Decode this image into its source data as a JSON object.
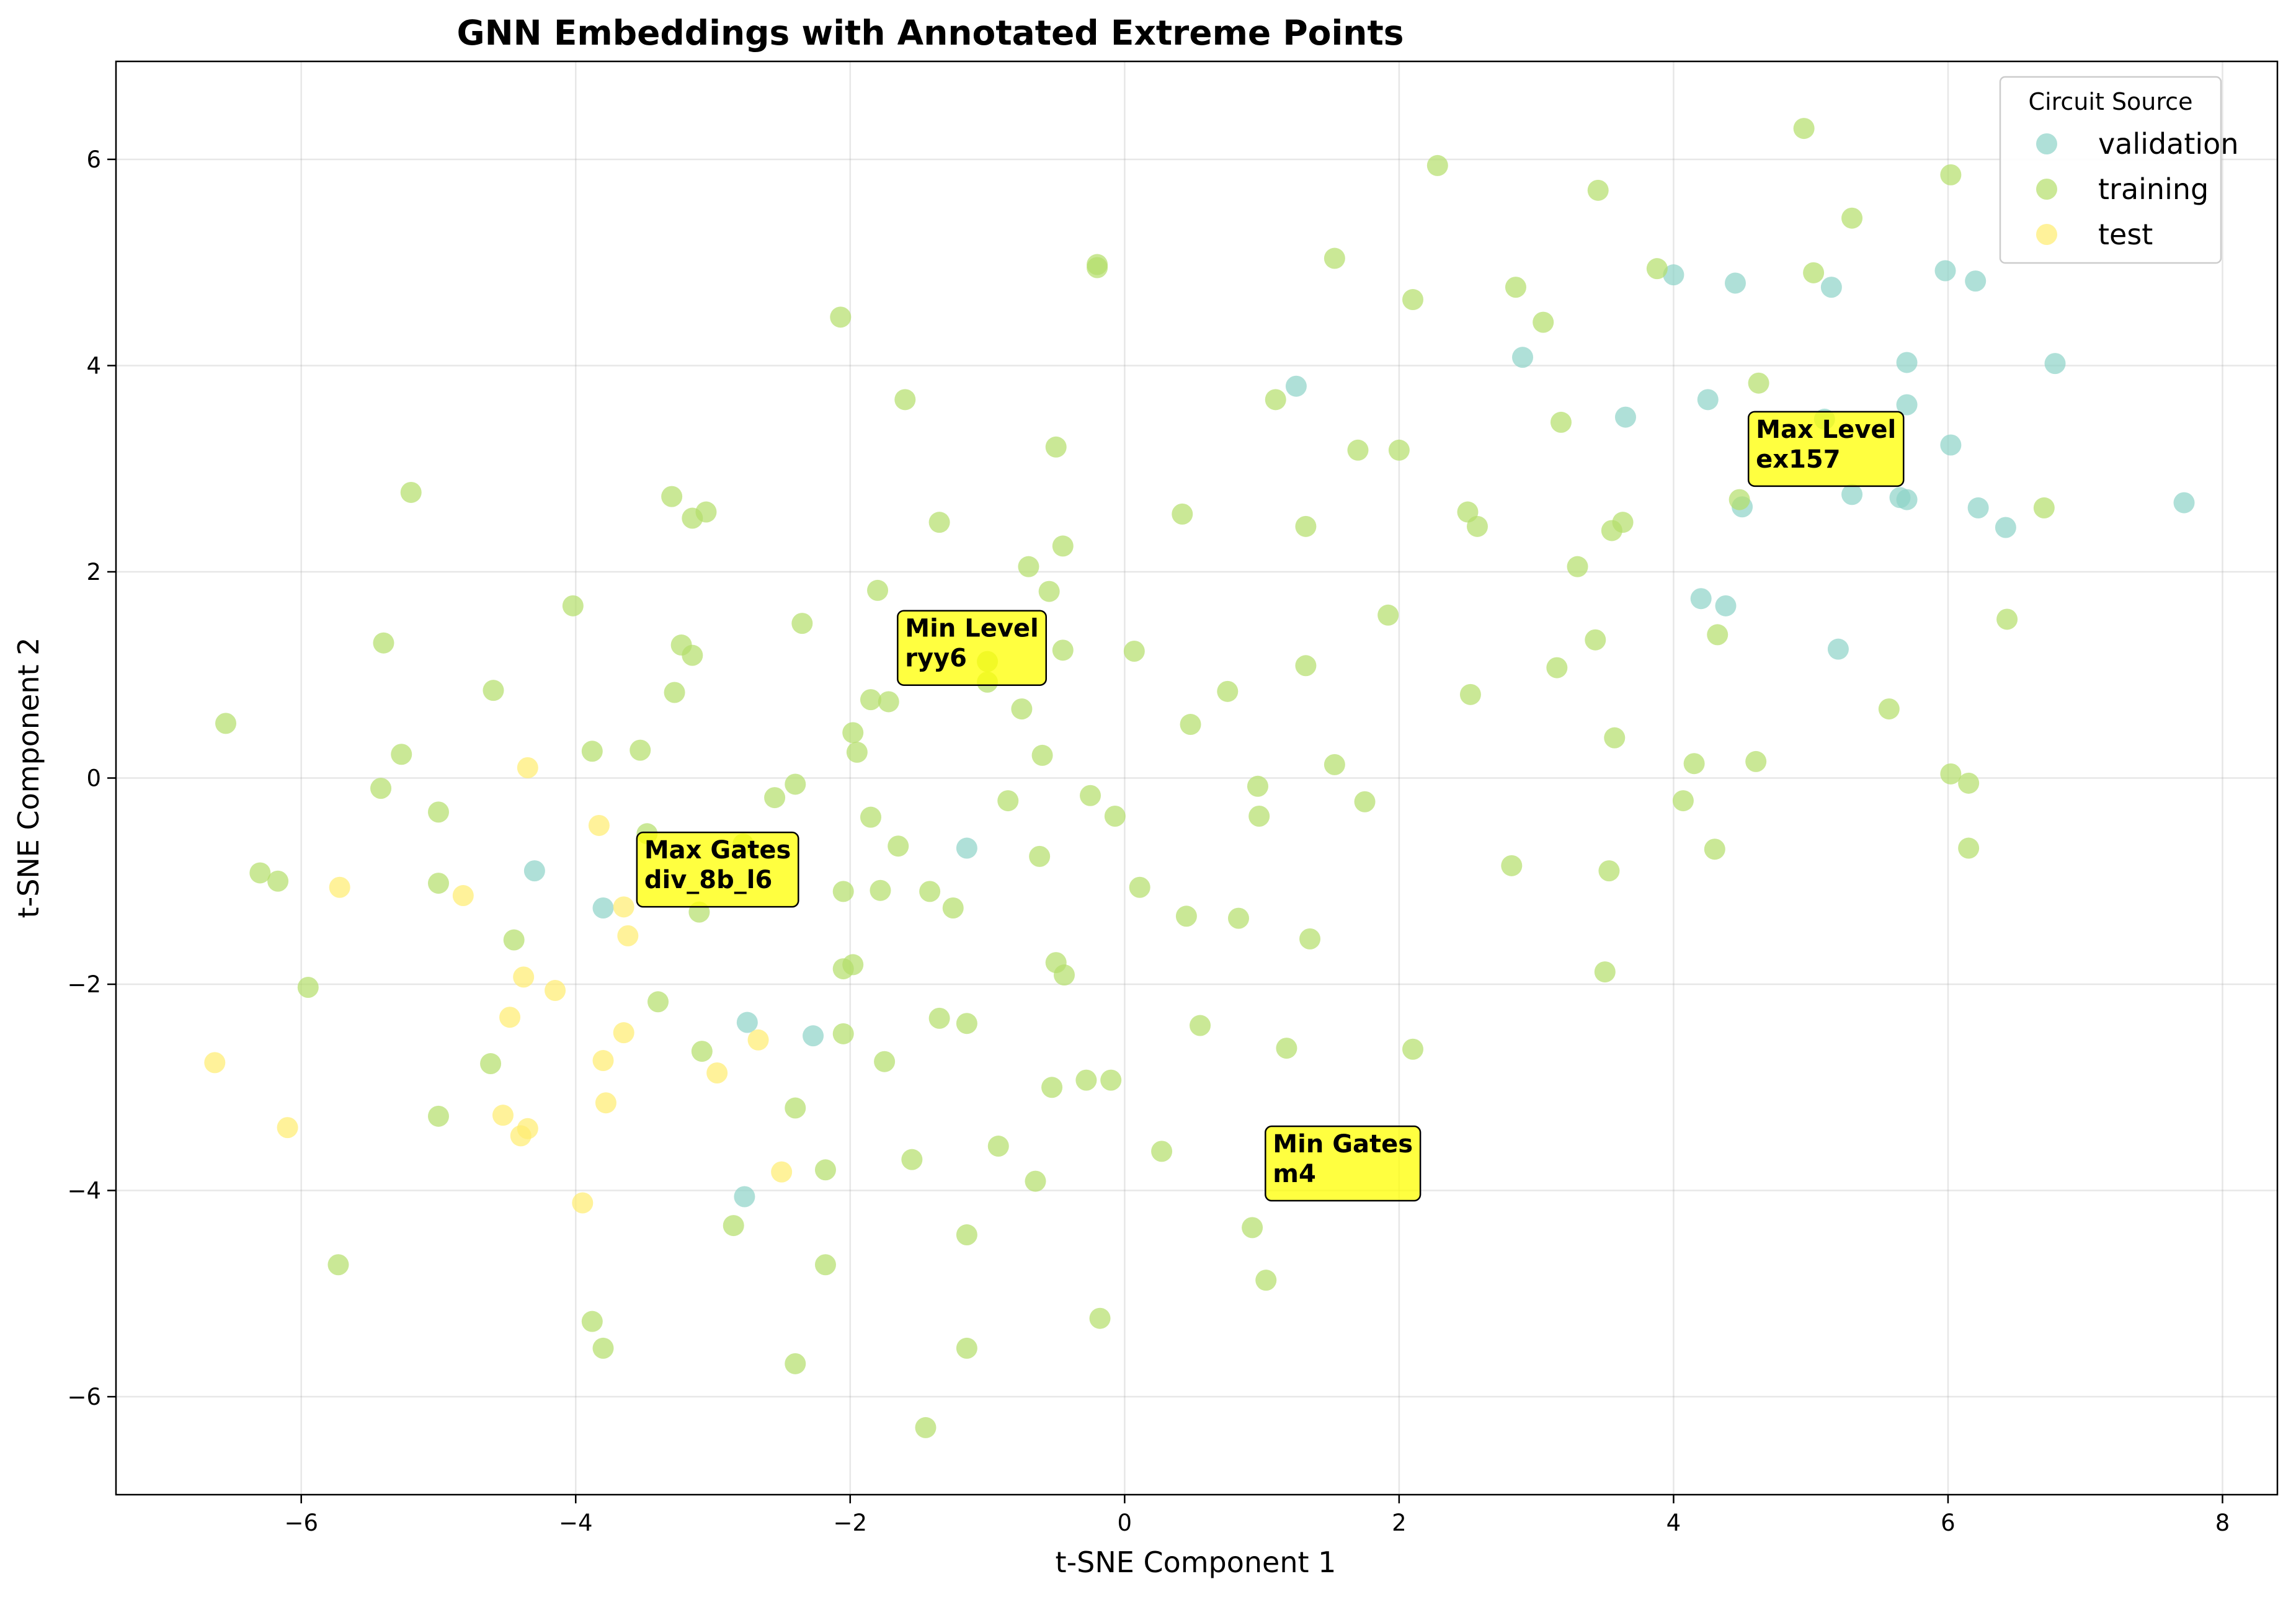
{
  "chart_data": {
    "type": "scatter",
    "title": "GNN Embeddings with Annotated Extreme Points",
    "xlabel": "t-SNE Component 1",
    "ylabel": "t-SNE Component 2",
    "xlim": [
      -7.35,
      8.4
    ],
    "ylim": [
      -6.95,
      6.95
    ],
    "xticks": [
      -6,
      -4,
      -2,
      0,
      2,
      4,
      6,
      8
    ],
    "yticks": [
      -6,
      -4,
      -2,
      0,
      2,
      4,
      6
    ],
    "grid": true,
    "legend": {
      "title": "Circuit Source",
      "placement": "top-right"
    },
    "series": [
      {
        "name": "validation",
        "color": "#8dd3c7",
        "points": [
          [
            1.25,
            3.8
          ],
          [
            2.9,
            4.08
          ],
          [
            4.0,
            4.88
          ],
          [
            4.45,
            4.8
          ],
          [
            5.15,
            4.76
          ],
          [
            5.98,
            4.92
          ],
          [
            6.2,
            4.82
          ],
          [
            4.25,
            3.67
          ],
          [
            3.65,
            3.5
          ],
          [
            5.7,
            4.03
          ],
          [
            6.78,
            4.02
          ],
          [
            5.7,
            3.62
          ],
          [
            5.1,
            3.48
          ],
          [
            6.02,
            3.23
          ],
          [
            4.5,
            2.63
          ],
          [
            5.3,
            2.75
          ],
          [
            5.65,
            2.72
          ],
          [
            5.7,
            2.7
          ],
          [
            6.22,
            2.62
          ],
          [
            6.42,
            2.43
          ],
          [
            7.72,
            2.67
          ],
          [
            4.2,
            1.74
          ],
          [
            4.38,
            1.67
          ],
          [
            5.2,
            1.25
          ],
          [
            -1.15,
            -0.68
          ],
          [
            -4.3,
            -0.9
          ],
          [
            -3.8,
            -1.26
          ],
          [
            -2.75,
            -2.37
          ],
          [
            -2.27,
            -2.5
          ],
          [
            -2.77,
            -4.06
          ]
        ]
      },
      {
        "name": "training",
        "color": "#b3de69",
        "points": [
          [
            4.95,
            6.3
          ],
          [
            2.28,
            5.94
          ],
          [
            3.45,
            5.7
          ],
          [
            6.02,
            5.85
          ],
          [
            5.3,
            5.43
          ],
          [
            1.53,
            5.04
          ],
          [
            -0.2,
            4.98
          ],
          [
            -0.2,
            4.95
          ],
          [
            3.88,
            4.94
          ],
          [
            5.02,
            4.9
          ],
          [
            2.85,
            4.76
          ],
          [
            2.1,
            4.64
          ],
          [
            -2.07,
            4.47
          ],
          [
            3.05,
            4.42
          ],
          [
            -1.6,
            3.67
          ],
          [
            1.1,
            3.67
          ],
          [
            4.62,
            3.83
          ],
          [
            3.18,
            3.45
          ],
          [
            -0.5,
            3.21
          ],
          [
            1.7,
            3.18
          ],
          [
            2.0,
            3.18
          ],
          [
            -5.2,
            2.77
          ],
          [
            -3.3,
            2.73
          ],
          [
            -3.05,
            2.58
          ],
          [
            -3.15,
            2.52
          ],
          [
            -1.35,
            2.48
          ],
          [
            0.42,
            2.56
          ],
          [
            1.32,
            2.44
          ],
          [
            2.5,
            2.58
          ],
          [
            2.57,
            2.44
          ],
          [
            3.55,
            2.4
          ],
          [
            3.63,
            2.48
          ],
          [
            4.48,
            2.7
          ],
          [
            6.7,
            2.62
          ],
          [
            -0.7,
            2.05
          ],
          [
            -0.45,
            2.25
          ],
          [
            -0.55,
            1.81
          ],
          [
            -1.8,
            1.82
          ],
          [
            3.3,
            2.05
          ],
          [
            -4.02,
            1.67
          ],
          [
            -5.4,
            1.31
          ],
          [
            -3.23,
            1.29
          ],
          [
            -3.15,
            1.19
          ],
          [
            -2.35,
            1.5
          ],
          [
            -1.0,
            1.13
          ],
          [
            -0.45,
            1.24
          ],
          [
            0.07,
            1.23
          ],
          [
            1.92,
            1.58
          ],
          [
            3.43,
            1.34
          ],
          [
            4.32,
            1.39
          ],
          [
            6.43,
            1.54
          ],
          [
            -4.6,
            0.85
          ],
          [
            -3.28,
            0.83
          ],
          [
            -1.85,
            0.76
          ],
          [
            -1.72,
            0.74
          ],
          [
            -1.0,
            0.93
          ],
          [
            -0.75,
            0.67
          ],
          [
            0.75,
            0.84
          ],
          [
            1.32,
            1.09
          ],
          [
            3.15,
            1.07
          ],
          [
            2.52,
            0.81
          ],
          [
            5.57,
            0.67
          ],
          [
            -6.55,
            0.53
          ],
          [
            -5.27,
            0.23
          ],
          [
            -3.88,
            0.26
          ],
          [
            -3.53,
            0.27
          ],
          [
            -1.98,
            0.44
          ],
          [
            -1.95,
            0.25
          ],
          [
            -0.6,
            0.22
          ],
          [
            0.48,
            0.52
          ],
          [
            1.53,
            0.13
          ],
          [
            3.57,
            0.39
          ],
          [
            4.15,
            0.14
          ],
          [
            4.6,
            0.16
          ],
          [
            -5.42,
            -0.1
          ],
          [
            -2.4,
            -0.06
          ],
          [
            -2.55,
            -0.19
          ],
          [
            -0.25,
            -0.17
          ],
          [
            -0.07,
            -0.37
          ],
          [
            0.97,
            -0.08
          ],
          [
            0.98,
            -0.37
          ],
          [
            1.75,
            -0.23
          ],
          [
            4.07,
            -0.22
          ],
          [
            6.02,
            0.04
          ],
          [
            6.15,
            -0.05
          ],
          [
            -5.0,
            -0.33
          ],
          [
            -3.48,
            -0.54
          ],
          [
            -1.85,
            -0.38
          ],
          [
            -1.65,
            -0.66
          ],
          [
            -0.85,
            -0.22
          ],
          [
            -0.62,
            -0.76
          ],
          [
            -2.78,
            -0.64
          ],
          [
            -6.3,
            -0.92
          ],
          [
            -6.17,
            -1.0
          ],
          [
            -5.0,
            -1.02
          ],
          [
            -3.1,
            -1.3
          ],
          [
            -2.05,
            -1.1
          ],
          [
            -1.78,
            -1.09
          ],
          [
            -1.42,
            -1.1
          ],
          [
            -1.25,
            -1.26
          ],
          [
            0.11,
            -1.06
          ],
          [
            2.82,
            -0.85
          ],
          [
            3.53,
            -0.9
          ],
          [
            4.3,
            -0.69
          ],
          [
            6.15,
            -0.68
          ],
          [
            -4.45,
            -1.57
          ],
          [
            -2.05,
            -1.85
          ],
          [
            -1.98,
            -1.81
          ],
          [
            -0.5,
            -1.79
          ],
          [
            -0.44,
            -1.91
          ],
          [
            0.45,
            -1.34
          ],
          [
            0.83,
            -1.36
          ],
          [
            1.35,
            -1.56
          ],
          [
            3.5,
            -1.88
          ],
          [
            -5.95,
            -2.03
          ],
          [
            -3.4,
            -2.17
          ],
          [
            -1.35,
            -2.33
          ],
          [
            -1.15,
            -2.38
          ],
          [
            -2.05,
            -2.48
          ],
          [
            -1.75,
            -2.75
          ],
          [
            -3.08,
            -2.65
          ],
          [
            -4.62,
            -2.77
          ],
          [
            0.55,
            -2.4
          ],
          [
            1.18,
            -2.62
          ],
          [
            2.1,
            -2.63
          ],
          [
            -0.53,
            -3.0
          ],
          [
            -0.28,
            -2.93
          ],
          [
            -0.1,
            -2.93
          ],
          [
            -5.0,
            -3.28
          ],
          [
            -2.4,
            -3.2
          ],
          [
            0.27,
            -3.62
          ],
          [
            -0.92,
            -3.57
          ],
          [
            -1.55,
            -3.7
          ],
          [
            -2.18,
            -3.8
          ],
          [
            -0.65,
            -3.91
          ],
          [
            -2.85,
            -4.34
          ],
          [
            -1.15,
            -4.43
          ],
          [
            0.93,
            -4.36
          ],
          [
            -5.73,
            -4.72
          ],
          [
            -2.18,
            -4.72
          ],
          [
            1.03,
            -4.87
          ],
          [
            -3.88,
            -5.27
          ],
          [
            -0.18,
            -5.24
          ],
          [
            -3.8,
            -5.53
          ],
          [
            -1.15,
            -5.53
          ],
          [
            -2.4,
            -5.68
          ],
          [
            -1.45,
            -6.3
          ]
        ]
      },
      {
        "name": "test",
        "color": "#ffed6f",
        "points": [
          [
            -4.35,
            0.1
          ],
          [
            -3.83,
            -0.46
          ],
          [
            -5.72,
            -1.06
          ],
          [
            -4.82,
            -1.14
          ],
          [
            -3.65,
            -1.25
          ],
          [
            -3.62,
            -1.53
          ],
          [
            -4.38,
            -1.93
          ],
          [
            -4.15,
            -2.06
          ],
          [
            -4.48,
            -2.32
          ],
          [
            -3.65,
            -2.47
          ],
          [
            -2.67,
            -2.54
          ],
          [
            -3.8,
            -2.74
          ],
          [
            -6.63,
            -2.76
          ],
          [
            -2.97,
            -2.86
          ],
          [
            -3.78,
            -3.15
          ],
          [
            -4.53,
            -3.27
          ],
          [
            -4.35,
            -3.4
          ],
          [
            -4.4,
            -3.47
          ],
          [
            -6.1,
            -3.39
          ],
          [
            -2.5,
            -3.82
          ],
          [
            -3.95,
            -4.12
          ]
        ]
      }
    ],
    "annotations": [
      {
        "line1": "Max Level",
        "line2": "ex157",
        "x": 4.6,
        "y": 3.3
      },
      {
        "line1": "Min Level",
        "line2": "ryy6",
        "x": -1.6,
        "y": 1.37
      },
      {
        "line1": "Max Gates",
        "line2": "div_8b_l6",
        "x": -3.5,
        "y": -0.78
      },
      {
        "line1": "Min Gates",
        "line2": "m4",
        "x": 1.08,
        "y": -3.63
      }
    ]
  }
}
